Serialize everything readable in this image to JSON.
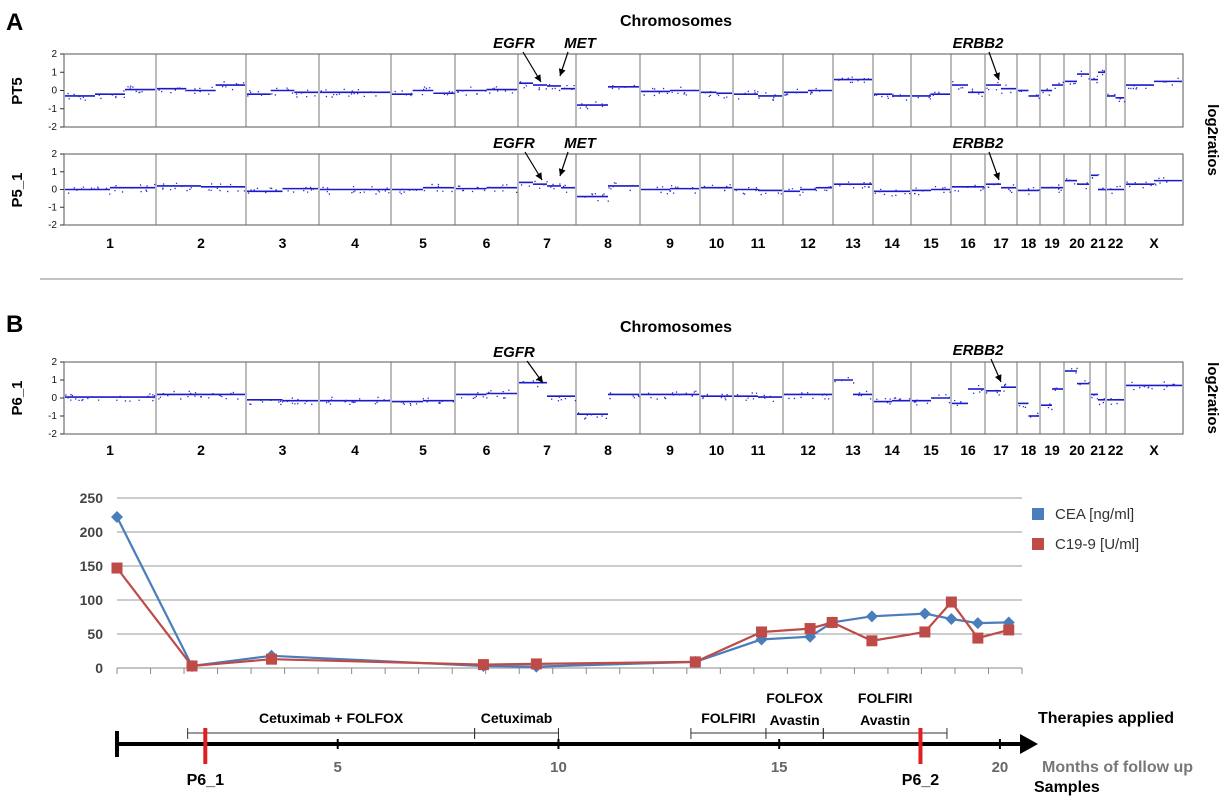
{
  "panel_a": {
    "letter": "A",
    "title": "Chromosomes",
    "right_label": "log2ratios",
    "rows": [
      {
        "label": "PT5",
        "yticks": [
          "2",
          "1",
          "0",
          "-1",
          "-2"
        ]
      },
      {
        "label": "P5_1",
        "yticks": [
          "2",
          "1",
          "0",
          "-1",
          "-2"
        ]
      }
    ],
    "gene_labels": [
      "EGFR",
      "MET",
      "ERBB2"
    ],
    "chromosomes": [
      "1",
      "2",
      "3",
      "4",
      "5",
      "6",
      "7",
      "8",
      "9",
      "10",
      "11",
      "12",
      "13",
      "14",
      "15",
      "16",
      "17",
      "18",
      "19",
      "20",
      "21",
      "22",
      "X"
    ]
  },
  "panel_b": {
    "letter": "B",
    "title": "Chromosomes",
    "right_label": "log2ratios",
    "row": {
      "label": "P6_1",
      "yticks": [
        "2",
        "1",
        "0",
        "-1",
        "-2"
      ]
    },
    "gene_labels": [
      "EGFR",
      "ERBB2"
    ],
    "chromosomes": [
      "1",
      "2",
      "3",
      "4",
      "5",
      "6",
      "7",
      "8",
      "9",
      "10",
      "11",
      "12",
      "13",
      "14",
      "15",
      "16",
      "17",
      "18",
      "19",
      "20",
      "21",
      "22",
      "X"
    ]
  },
  "chart_data": {
    "type": "line",
    "yticks": [
      "0",
      "50",
      "100",
      "150",
      "200",
      "250"
    ],
    "ylim": [
      0,
      250
    ],
    "xlim": [
      0,
      20.5
    ],
    "grid": true,
    "legend_position": "right",
    "series": [
      {
        "name": "CEA [ng/ml]",
        "color": "#4a7ebb",
        "marker": "diamond",
        "points": [
          [
            0,
            222
          ],
          [
            1.7,
            3
          ],
          [
            3.5,
            18
          ],
          [
            8.3,
            3
          ],
          [
            9.5,
            2
          ],
          [
            13.1,
            9
          ],
          [
            14.6,
            42
          ],
          [
            15.7,
            46
          ],
          [
            16.2,
            67
          ],
          [
            17.1,
            76
          ],
          [
            18.3,
            80
          ],
          [
            18.9,
            72
          ],
          [
            19.5,
            66
          ],
          [
            20.2,
            67
          ]
        ]
      },
      {
        "name": "C19-9 [U/ml]",
        "color": "#be4b48",
        "marker": "square",
        "points": [
          [
            0,
            147
          ],
          [
            1.7,
            3
          ],
          [
            3.5,
            13
          ],
          [
            8.3,
            5
          ],
          [
            9.5,
            6
          ],
          [
            13.1,
            9
          ],
          [
            14.6,
            53
          ],
          [
            15.7,
            58
          ],
          [
            16.2,
            67
          ],
          [
            17.1,
            40
          ],
          [
            18.3,
            53
          ],
          [
            18.9,
            97
          ],
          [
            19.5,
            44
          ],
          [
            20.2,
            56
          ]
        ]
      }
    ]
  },
  "timeline": {
    "therapies_label": "Therapies applied",
    "months_label": "Months of follow up",
    "samples_label": "Samples",
    "month_ticks": [
      "5",
      "10",
      "15",
      "20"
    ],
    "therapies": [
      {
        "label": "Cetuximab + FOLFOX",
        "line2": "",
        "start": 1.6,
        "end": 8.1
      },
      {
        "label": "Cetuximab",
        "line2": "",
        "start": 8.1,
        "end": 10.0
      },
      {
        "label": "FOLFIRI",
        "line2": "",
        "start": 13.0,
        "end": 14.7
      },
      {
        "label": "FOLFOX",
        "line2": "Avastin",
        "start": 14.7,
        "end": 16.0
      },
      {
        "label": "FOLFIRI",
        "line2": "Avastin",
        "start": 16.0,
        "end": 18.8
      }
    ],
    "samples": [
      {
        "label": "P6_1",
        "month": 2.0
      },
      {
        "label": "P6_2",
        "month": 18.2
      }
    ]
  }
}
